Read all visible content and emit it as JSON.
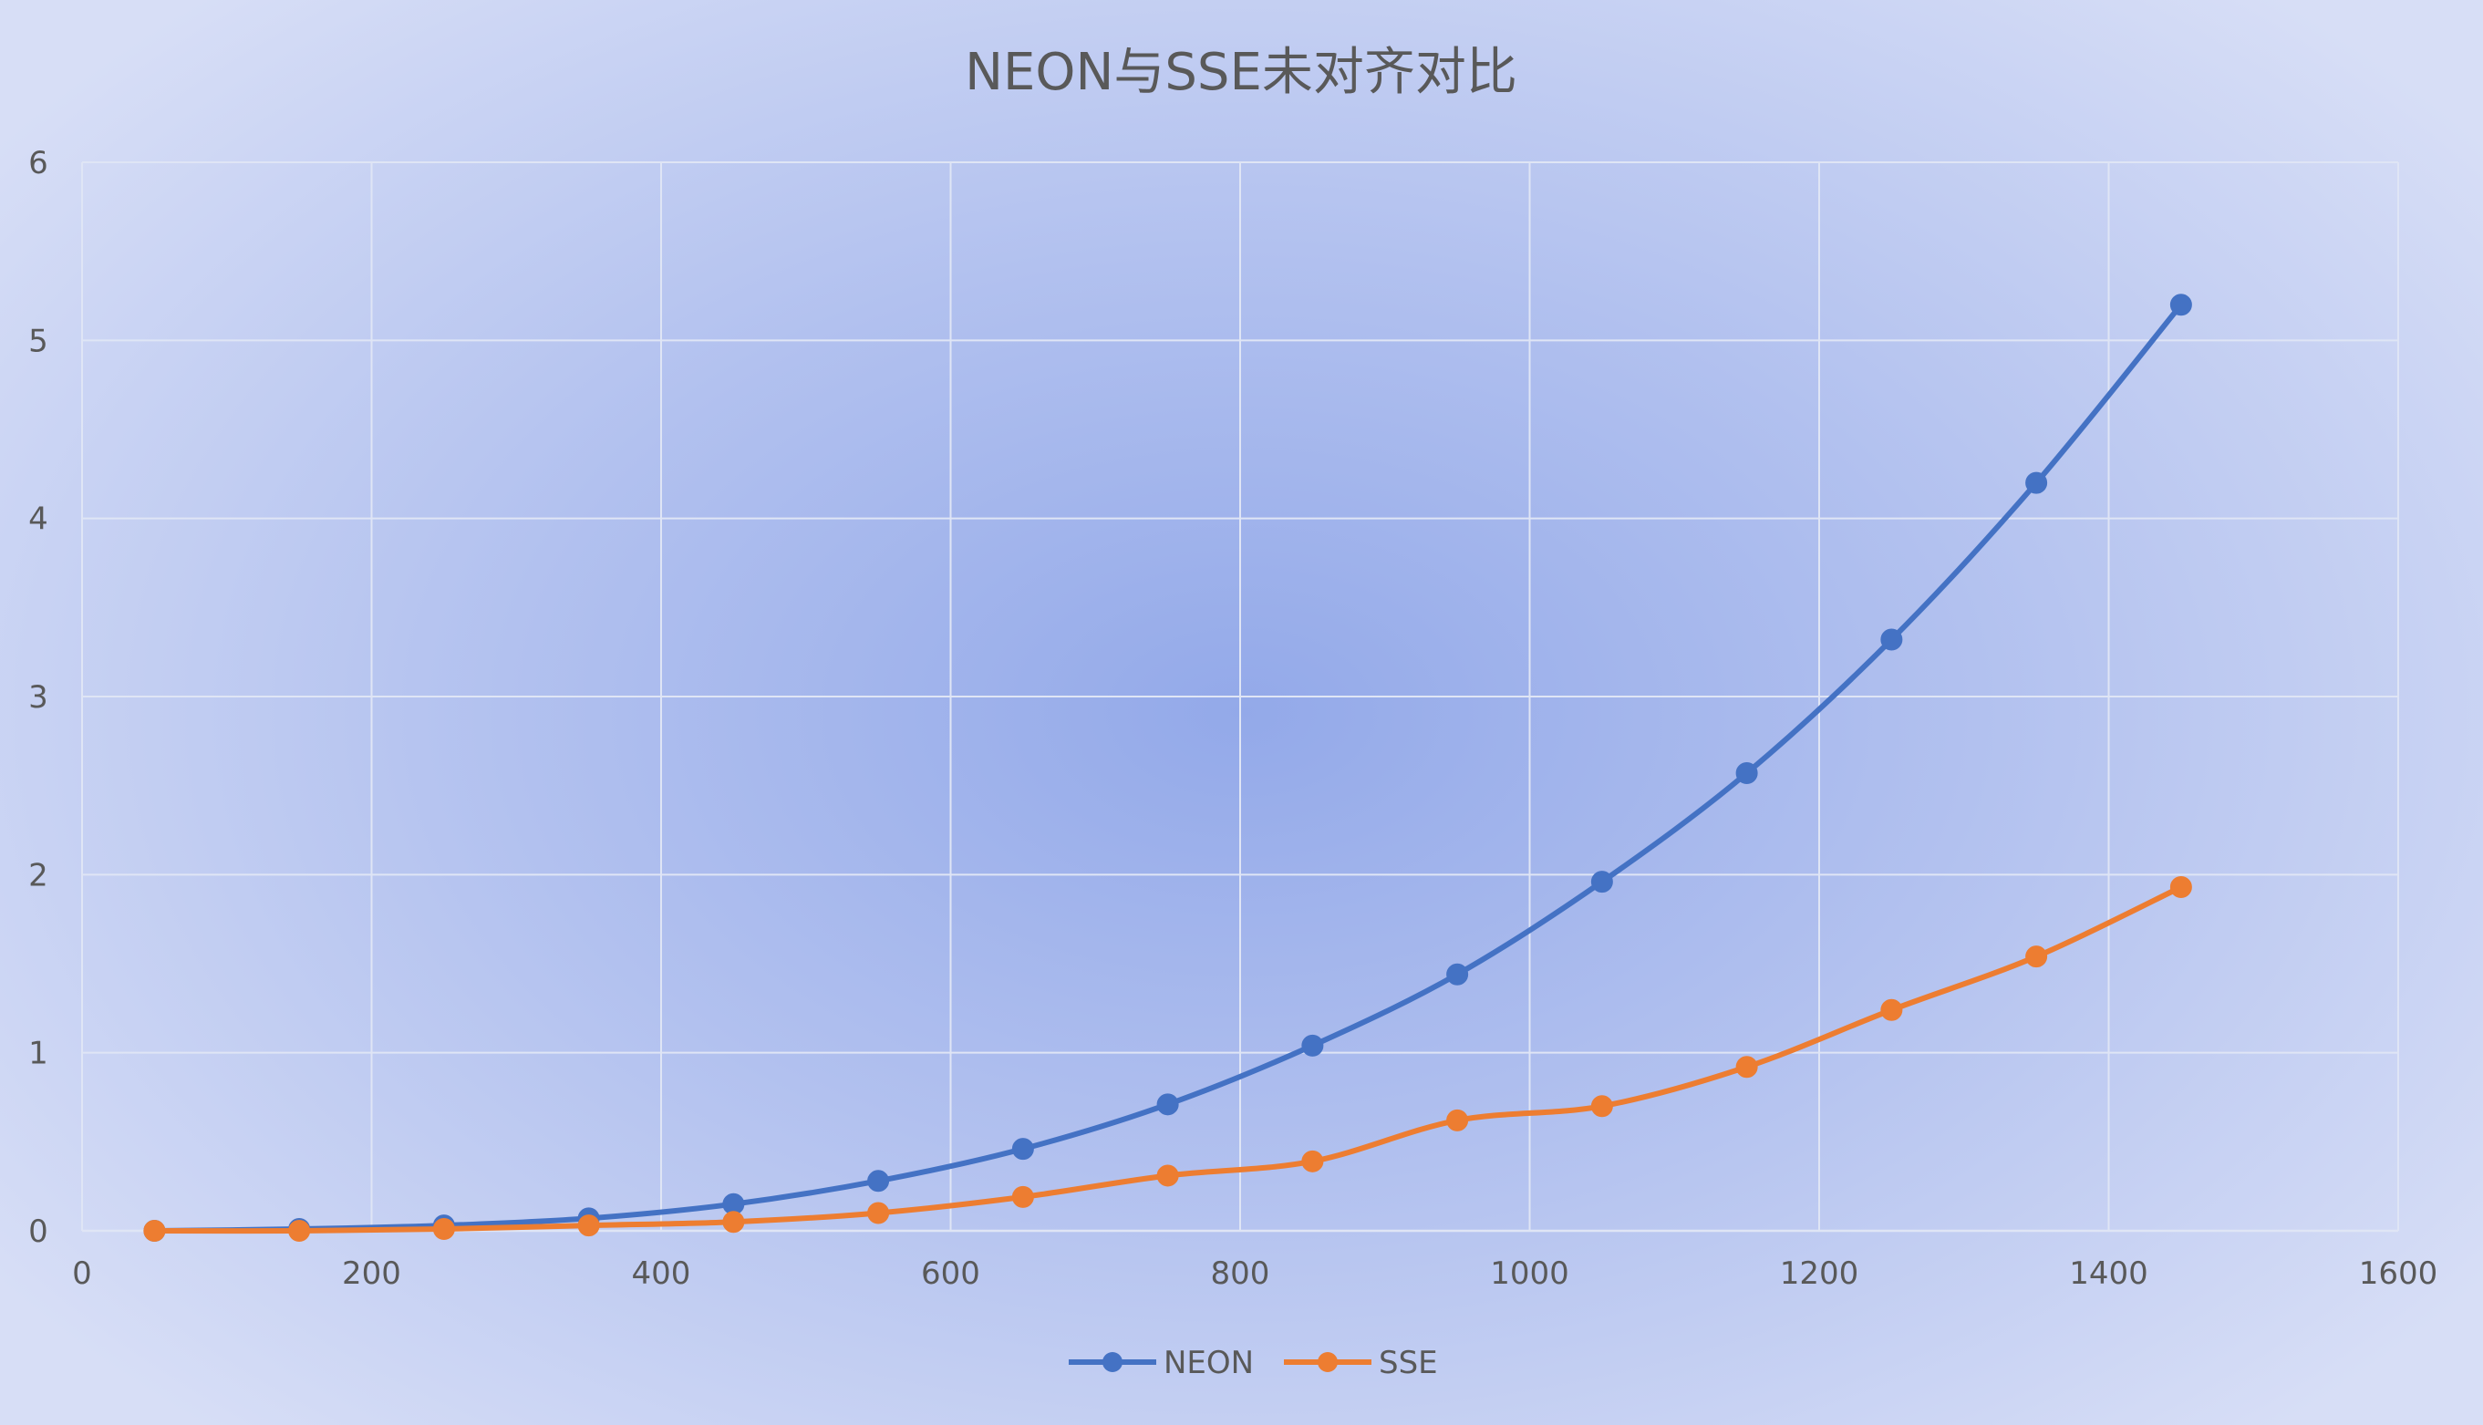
{
  "chart_data": {
    "type": "line",
    "title": "NEON与SSE未对齐对比",
    "xlabel": "",
    "ylabel": "",
    "xlim": [
      0,
      1600
    ],
    "ylim": [
      0,
      6
    ],
    "x_ticks": [
      0,
      200,
      400,
      600,
      800,
      1000,
      1200,
      1400,
      1600
    ],
    "y_ticks": [
      0,
      1,
      2,
      3,
      4,
      5,
      6
    ],
    "grid": true,
    "smooth": true,
    "legend_position": "bottom",
    "x": [
      50,
      150,
      250,
      350,
      450,
      550,
      650,
      750,
      850,
      950,
      1050,
      1150,
      1250,
      1350,
      1450
    ],
    "series": [
      {
        "name": "NEON",
        "color": "#4472c4",
        "values": [
          0.0,
          0.01,
          0.03,
          0.07,
          0.15,
          0.28,
          0.46,
          0.71,
          1.04,
          1.44,
          1.96,
          2.57,
          3.32,
          4.2,
          5.2
        ]
      },
      {
        "name": "SSE",
        "color": "#ed7d31",
        "values": [
          0.0,
          0.0,
          0.01,
          0.03,
          0.05,
          0.1,
          0.19,
          0.31,
          0.39,
          0.62,
          0.7,
          0.92,
          1.24,
          1.54,
          1.93
        ]
      }
    ]
  }
}
